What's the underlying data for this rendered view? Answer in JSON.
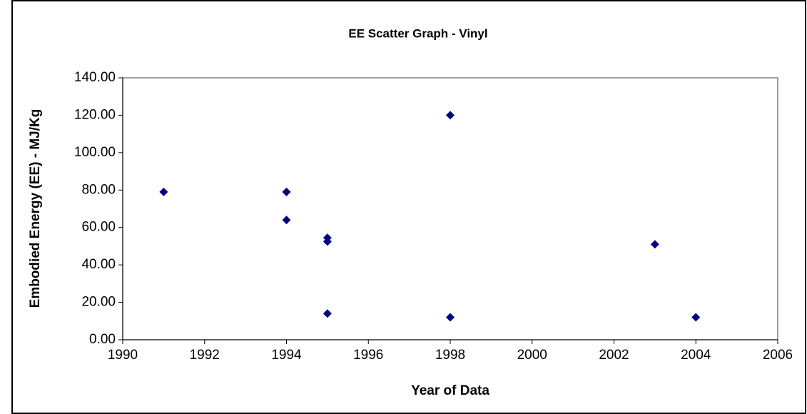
{
  "chart_data": {
    "type": "scatter",
    "title": "EE Scatter Graph - Vinyl",
    "x_label": "Year of Data",
    "y_label": "Embodied Energy (EE) - MJ/Kg",
    "series": [
      {
        "color": "#000080",
        "x": [
          1991,
          1994,
          1994,
          1994,
          1995,
          1995,
          1995,
          1998,
          1998,
          2003,
          2004
        ],
        "values": [
          79,
          79,
          79,
          64,
          54.5,
          52.5,
          14,
          120,
          12,
          51,
          12
        ]
      }
    ],
    "xlim": [
      1990,
      2006
    ],
    "xticks": [
      1990,
      1992,
      1994,
      1996,
      1998,
      2000,
      2002,
      2004,
      2006
    ],
    "ylim": [
      0,
      140
    ],
    "yticks": [
      {
        "value": 0,
        "label": "0.00"
      },
      {
        "value": 20,
        "label": "20.00"
      },
      {
        "value": 40,
        "label": "40.00"
      },
      {
        "value": 60,
        "label": "60.00"
      },
      {
        "value": 80,
        "label": "80.00"
      },
      {
        "value": 100,
        "label": "100.00"
      },
      {
        "value": 120,
        "label": "120.00"
      },
      {
        "value": 140,
        "label": "140.00"
      }
    ],
    "grid": false
  }
}
